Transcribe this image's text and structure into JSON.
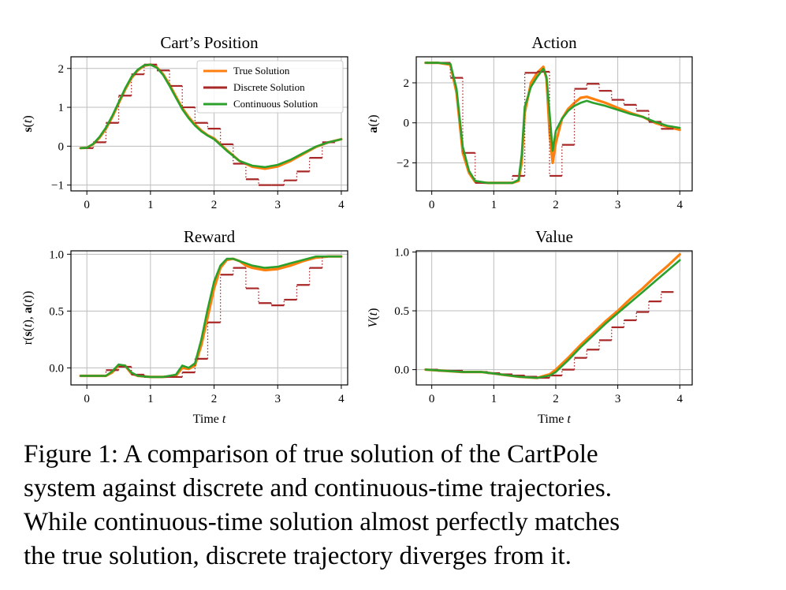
{
  "colors": {
    "true": "#ff7f0e",
    "discrete": "#a82828",
    "continuous": "#2ca02c",
    "grid": "#bdbdbd"
  },
  "legend": {
    "true": "True Solution",
    "discrete": "Discrete Solution",
    "continuous": "Continuous Solution"
  },
  "caption": {
    "line1": "Figure 1:  A comparison of true solution of the CartPole",
    "line2": "system against discrete and continuous-time trajectories.",
    "line3": "While continuous-time solution almost perfectly matches",
    "line4": "the true solution, discrete trajectory diverges from it."
  },
  "chart_data": [
    {
      "type": "line",
      "title": "Cart’s Position",
      "ylabel": "s(t)",
      "xlabel": "",
      "xlim": [
        -0.25,
        4.1
      ],
      "ylim": [
        -1.15,
        2.3
      ],
      "xticks": [
        0,
        1,
        2,
        3,
        4
      ],
      "yticks": [
        -1,
        0,
        1,
        2
      ],
      "ytick_labels": [
        "−1",
        "0",
        "1",
        "2"
      ],
      "grid": true,
      "legend": "top-right",
      "series": [
        {
          "name": "True Solution",
          "x": [
            -0.1,
            0,
            0.1,
            0.2,
            0.3,
            0.4,
            0.5,
            0.6,
            0.7,
            0.8,
            0.9,
            1.0,
            1.1,
            1.2,
            1.3,
            1.4,
            1.5,
            1.6,
            1.7,
            1.8,
            1.9,
            2.0,
            2.2,
            2.4,
            2.6,
            2.8,
            3.0,
            3.2,
            3.4,
            3.6,
            3.8,
            4.0
          ],
          "y": [
            -0.05,
            -0.04,
            0.05,
            0.22,
            0.45,
            0.75,
            1.1,
            1.45,
            1.75,
            1.95,
            2.07,
            2.1,
            2.03,
            1.85,
            1.58,
            1.28,
            0.98,
            0.75,
            0.56,
            0.4,
            0.28,
            0.2,
            -0.1,
            -0.38,
            -0.53,
            -0.58,
            -0.52,
            -0.38,
            -0.2,
            -0.02,
            0.1,
            0.18
          ]
        },
        {
          "name": "Discrete Solution",
          "step_width": 0.2,
          "x": [
            -0.1,
            0.1,
            0.3,
            0.5,
            0.7,
            0.9,
            1.1,
            1.3,
            1.5,
            1.7,
            1.9,
            2.1,
            2.3,
            2.5,
            2.7,
            2.9,
            3.1,
            3.3,
            3.5,
            3.7
          ],
          "y": [
            -0.05,
            0.1,
            0.6,
            1.3,
            1.85,
            2.1,
            1.95,
            1.55,
            1.0,
            0.6,
            0.45,
            0.05,
            -0.45,
            -0.85,
            -1.0,
            -1.0,
            -0.88,
            -0.65,
            -0.3,
            0.1
          ]
        },
        {
          "name": "Continuous Solution",
          "x": [
            -0.1,
            0,
            0.1,
            0.2,
            0.3,
            0.4,
            0.5,
            0.6,
            0.7,
            0.8,
            0.9,
            1.0,
            1.1,
            1.2,
            1.3,
            1.4,
            1.5,
            1.6,
            1.7,
            1.8,
            1.9,
            2.0,
            2.2,
            2.4,
            2.6,
            2.8,
            3.0,
            3.2,
            3.4,
            3.6,
            3.8,
            4.0
          ],
          "y": [
            -0.05,
            -0.04,
            0.06,
            0.24,
            0.48,
            0.78,
            1.13,
            1.48,
            1.78,
            1.97,
            2.08,
            2.1,
            2.02,
            1.83,
            1.55,
            1.25,
            0.95,
            0.72,
            0.53,
            0.38,
            0.27,
            0.18,
            -0.12,
            -0.38,
            -0.5,
            -0.54,
            -0.48,
            -0.35,
            -0.18,
            -0.01,
            0.1,
            0.18
          ]
        }
      ]
    },
    {
      "type": "line",
      "title": "Action",
      "ylabel": "a(t)",
      "xlabel": "",
      "xlim": [
        -0.25,
        4.2
      ],
      "ylim": [
        -3.4,
        3.3
      ],
      "xticks": [
        0,
        1,
        2,
        3,
        4
      ],
      "yticks": [
        -2,
        0,
        2
      ],
      "ytick_labels": [
        "−2",
        "0",
        "2"
      ],
      "grid": true,
      "series": [
        {
          "name": "True Solution",
          "x": [
            -0.1,
            0.1,
            0.3,
            0.4,
            0.5,
            0.6,
            0.7,
            0.9,
            1.1,
            1.3,
            1.4,
            1.45,
            1.5,
            1.6,
            1.7,
            1.8,
            1.85,
            1.9,
            1.95,
            2.0,
            2.1,
            2.2,
            2.3,
            2.4,
            2.5,
            2.6,
            2.8,
            3.0,
            3.2,
            3.4,
            3.6,
            3.8,
            4.0
          ],
          "y": [
            3.0,
            3.0,
            2.9,
            1.5,
            -1.5,
            -2.5,
            -2.95,
            -3.0,
            -3.0,
            -3.0,
            -2.9,
            -2.0,
            0.5,
            2.0,
            2.5,
            2.8,
            2.2,
            -0.5,
            -2.0,
            -1.0,
            0.2,
            0.7,
            1.0,
            1.25,
            1.3,
            1.2,
            1.0,
            0.75,
            0.5,
            0.3,
            0.0,
            -0.2,
            -0.35
          ]
        },
        {
          "name": "Discrete Solution",
          "step_width": 0.2,
          "x": [
            -0.1,
            0.1,
            0.3,
            0.5,
            0.7,
            0.9,
            1.1,
            1.3,
            1.5,
            1.7,
            1.9,
            2.1,
            2.3,
            2.5,
            2.7,
            2.9,
            3.1,
            3.3,
            3.5,
            3.7
          ],
          "y": [
            3.0,
            3.0,
            2.25,
            -1.5,
            -3.0,
            -3.0,
            -3.0,
            -2.65,
            2.5,
            2.55,
            -2.65,
            -1.1,
            1.7,
            1.95,
            1.6,
            1.15,
            0.9,
            0.6,
            0.05,
            -0.3
          ]
        },
        {
          "name": "Continuous Solution",
          "x": [
            -0.1,
            0.1,
            0.3,
            0.4,
            0.5,
            0.6,
            0.7,
            0.9,
            1.1,
            1.3,
            1.4,
            1.45,
            1.5,
            1.6,
            1.7,
            1.8,
            1.85,
            1.9,
            1.95,
            2.0,
            2.1,
            2.2,
            2.3,
            2.4,
            2.5,
            2.6,
            2.8,
            3.0,
            3.2,
            3.4,
            3.6,
            3.8,
            4.0
          ],
          "y": [
            3.0,
            3.0,
            2.95,
            1.7,
            -1.2,
            -2.4,
            -2.9,
            -3.0,
            -3.0,
            -3.0,
            -2.85,
            -1.6,
            0.8,
            1.8,
            2.3,
            2.7,
            2.3,
            0.5,
            -1.4,
            -0.4,
            0.2,
            0.6,
            0.85,
            1.0,
            1.1,
            1.0,
            0.85,
            0.65,
            0.45,
            0.3,
            0.05,
            -0.15,
            -0.25
          ]
        }
      ]
    },
    {
      "type": "line",
      "title": "Reward",
      "ylabel": "r(s(t), a(t))",
      "xlabel": "Time t",
      "xlim": [
        -0.25,
        4.1
      ],
      "ylim": [
        -0.15,
        1.03
      ],
      "xticks": [
        0,
        1,
        2,
        3,
        4
      ],
      "yticks": [
        0.0,
        0.5,
        1.0
      ],
      "ytick_labels": [
        "0.0",
        "0.5",
        "1.0"
      ],
      "grid": true,
      "series": [
        {
          "name": "True Solution",
          "x": [
            -0.1,
            0.3,
            0.4,
            0.5,
            0.6,
            0.7,
            0.8,
            1.0,
            1.2,
            1.4,
            1.5,
            1.6,
            1.7,
            1.8,
            1.9,
            2.0,
            2.1,
            2.2,
            2.3,
            2.4,
            2.5,
            2.6,
            2.8,
            3.0,
            3.2,
            3.4,
            3.6,
            3.8,
            4.0
          ],
          "y": [
            -0.07,
            -0.07,
            -0.04,
            0.02,
            0.02,
            -0.05,
            -0.07,
            -0.08,
            -0.08,
            -0.07,
            0.0,
            -0.01,
            0.02,
            0.2,
            0.45,
            0.7,
            0.88,
            0.95,
            0.96,
            0.94,
            0.9,
            0.88,
            0.86,
            0.87,
            0.9,
            0.94,
            0.97,
            0.98,
            0.98
          ]
        },
        {
          "name": "Discrete Solution",
          "step_width": 0.2,
          "x": [
            -0.1,
            0.1,
            0.3,
            0.5,
            0.7,
            0.9,
            1.1,
            1.3,
            1.5,
            1.7,
            1.9,
            2.1,
            2.3,
            2.5,
            2.7,
            2.9,
            3.1,
            3.3,
            3.5,
            3.7
          ],
          "y": [
            -0.07,
            -0.07,
            -0.02,
            0.01,
            -0.06,
            -0.08,
            -0.08,
            -0.08,
            -0.04,
            0.08,
            0.4,
            0.82,
            0.88,
            0.7,
            0.57,
            0.55,
            0.6,
            0.73,
            0.88,
            0.98
          ]
        },
        {
          "name": "Continuous Solution",
          "x": [
            -0.1,
            0.3,
            0.4,
            0.5,
            0.6,
            0.7,
            0.8,
            1.0,
            1.2,
            1.4,
            1.5,
            1.6,
            1.7,
            1.8,
            1.9,
            2.0,
            2.1,
            2.2,
            2.3,
            2.4,
            2.5,
            2.6,
            2.8,
            3.0,
            3.2,
            3.4,
            3.6,
            3.8,
            4.0
          ],
          "y": [
            -0.07,
            -0.07,
            -0.03,
            0.03,
            0.02,
            -0.04,
            -0.07,
            -0.08,
            -0.08,
            -0.06,
            0.02,
            0.0,
            0.04,
            0.25,
            0.52,
            0.76,
            0.9,
            0.96,
            0.96,
            0.94,
            0.92,
            0.9,
            0.88,
            0.89,
            0.92,
            0.95,
            0.98,
            0.98,
            0.98
          ]
        }
      ]
    },
    {
      "type": "line",
      "title": "Value",
      "ylabel": "V(t)",
      "xlabel": "Time t",
      "xlim": [
        -0.25,
        4.2
      ],
      "ylim": [
        -0.13,
        1.01
      ],
      "xticks": [
        0,
        1,
        2,
        3,
        4
      ],
      "yticks": [
        0.0,
        0.5,
        1.0
      ],
      "ytick_labels": [
        "0.0",
        "0.5",
        "1.0"
      ],
      "grid": true,
      "series": [
        {
          "name": "True Solution",
          "x": [
            -0.1,
            0.2,
            0.5,
            0.8,
            1.1,
            1.4,
            1.7,
            1.9,
            2.0,
            2.2,
            2.4,
            2.6,
            2.8,
            3.0,
            3.2,
            3.4,
            3.6,
            3.8,
            4.0
          ],
          "y": [
            0.0,
            -0.01,
            -0.02,
            -0.02,
            -0.04,
            -0.06,
            -0.07,
            -0.04,
            0.0,
            0.1,
            0.21,
            0.31,
            0.41,
            0.5,
            0.6,
            0.69,
            0.79,
            0.88,
            0.98
          ]
        },
        {
          "name": "Discrete Solution",
          "step_width": 0.2,
          "x": [
            -0.1,
            0.1,
            0.3,
            0.5,
            0.7,
            0.9,
            1.1,
            1.3,
            1.5,
            1.7,
            1.9,
            2.1,
            2.3,
            2.5,
            2.7,
            2.9,
            3.1,
            3.3,
            3.5,
            3.7
          ],
          "y": [
            0.0,
            -0.01,
            -0.01,
            -0.02,
            -0.02,
            -0.03,
            -0.04,
            -0.05,
            -0.06,
            -0.07,
            -0.05,
            0.0,
            0.1,
            0.17,
            0.25,
            0.36,
            0.42,
            0.49,
            0.58,
            0.66
          ]
        },
        {
          "name": "Continuous Solution",
          "x": [
            -0.1,
            0.2,
            0.5,
            0.8,
            1.1,
            1.4,
            1.7,
            1.9,
            2.0,
            2.2,
            2.4,
            2.6,
            2.8,
            3.0,
            3.2,
            3.4,
            3.6,
            3.8,
            4.0
          ],
          "y": [
            0.0,
            -0.01,
            -0.02,
            -0.02,
            -0.04,
            -0.06,
            -0.07,
            -0.05,
            -0.02,
            0.08,
            0.19,
            0.29,
            0.39,
            0.48,
            0.57,
            0.66,
            0.75,
            0.84,
            0.93
          ]
        }
      ]
    }
  ]
}
